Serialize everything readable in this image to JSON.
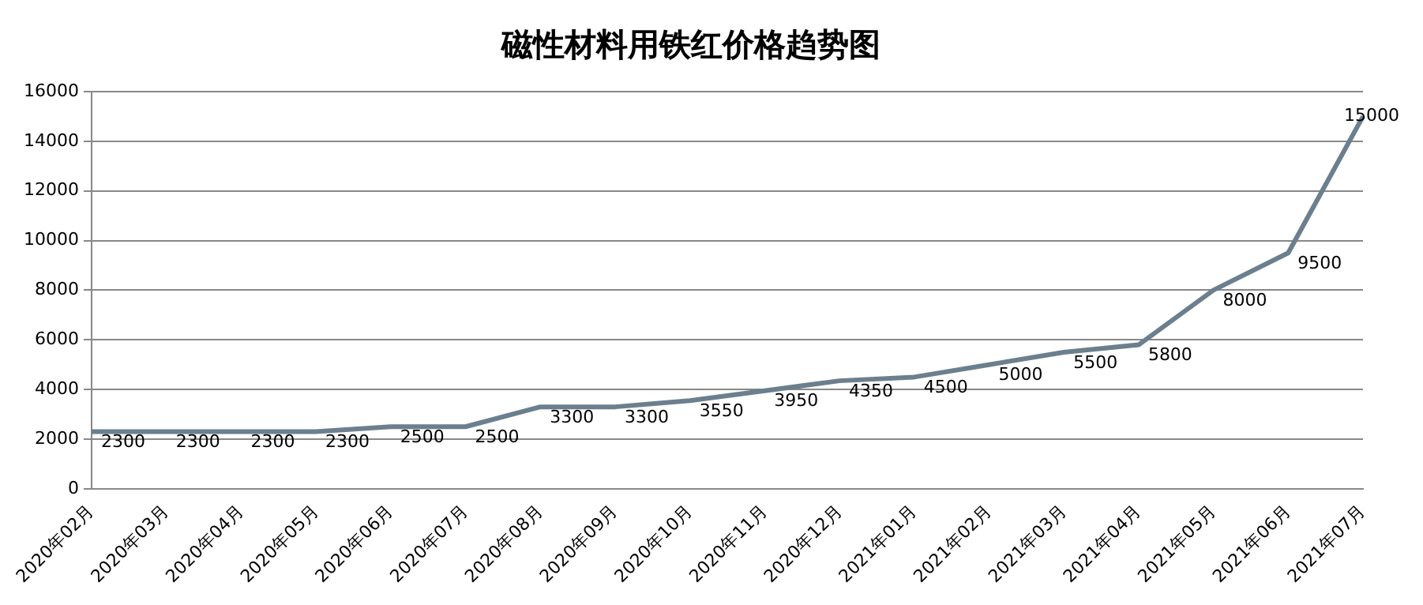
{
  "chart_data": {
    "type": "line",
    "title": "磁性材料用铁红价格趋势图",
    "categories": [
      "2020年02月",
      "2020年03月",
      "2020年04月",
      "2020年05月",
      "2020年06月",
      "2020年07月",
      "2020年08月",
      "2020年09月",
      "2020年10月",
      "2020年11月",
      "2020年12月",
      "2021年01月",
      "2021年02月",
      "2021年03月",
      "2021年04月",
      "2021年05月",
      "2021年06月",
      "2021年07月"
    ],
    "series": [
      {
        "color": "#6b7f8e",
        "values": [
          2300,
          2300,
          2300,
          2300,
          2500,
          2500,
          3300,
          3300,
          3550,
          3950,
          4350,
          4500,
          5000,
          5500,
          5800,
          8000,
          9500,
          15000
        ]
      }
    ],
    "ylim": [
      0,
      16000
    ],
    "yticks": [
      0,
      2000,
      4000,
      6000,
      8000,
      10000,
      12000,
      14000,
      16000
    ],
    "grid": "y",
    "legend": false,
    "marker": "none",
    "line_style": "solid",
    "data_labels": true
  }
}
